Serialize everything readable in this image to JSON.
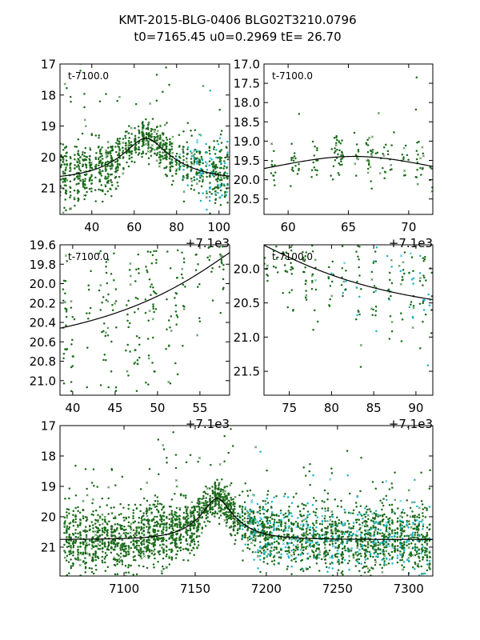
{
  "title": {
    "line1": "KMT-2015-BLG-0406 BLG02T3210.0796",
    "line2": "t0=7165.45 u0=0.2969 tE=  26.70"
  },
  "colors": {
    "green": "#1a6b1a",
    "cyan": "#19b5c4",
    "model": "#000000"
  },
  "chart_data": [
    {
      "type": "scatter",
      "name": "panel-1",
      "annotation": "t-7100.0",
      "xlim": [
        25,
        105
      ],
      "ylim": [
        21.85,
        17.0
      ],
      "xticks": [
        40,
        60,
        80,
        100
      ],
      "yticks": [
        17,
        18,
        19,
        20,
        21
      ],
      "offset_label": "+7.1e3",
      "series": [
        {
          "name": "KMT data",
          "band": "green"
        },
        {
          "name": "KMT data (alt site)",
          "band": "cyan"
        },
        {
          "name": "model"
        }
      ]
    },
    {
      "type": "scatter",
      "name": "panel-2",
      "annotation": "t-7100.0",
      "xlim": [
        58,
        72
      ],
      "ylim": [
        20.9,
        17.0
      ],
      "xticks": [
        60,
        65,
        70
      ],
      "yticks": [
        17.0,
        17.5,
        18.0,
        18.5,
        19.0,
        19.5,
        20.0,
        20.5
      ],
      "offset_label": "+7.1e3",
      "series": [
        {
          "name": "KMT data",
          "band": "green"
        },
        {
          "name": "model"
        }
      ]
    },
    {
      "type": "scatter",
      "name": "panel-3",
      "annotation": "t-7100.0",
      "xlim": [
        38.5,
        58.5
      ],
      "ylim": [
        21.15,
        19.6
      ],
      "xticks": [
        40,
        45,
        50,
        55
      ],
      "yticks": [
        19.6,
        19.8,
        20.0,
        20.2,
        20.4,
        20.6,
        20.8,
        21.0
      ],
      "offset_label": "+7.1e3",
      "series": [
        {
          "name": "KMT data",
          "band": "green"
        },
        {
          "name": "model"
        }
      ]
    },
    {
      "type": "scatter",
      "name": "panel-4",
      "annotation": "t-7100.0",
      "xlim": [
        72,
        92
      ],
      "ylim": [
        21.85,
        19.65
      ],
      "xticks": [
        75,
        80,
        85,
        90
      ],
      "yticks": [
        20.0,
        20.5,
        21.0,
        21.5
      ],
      "offset_label": "+7.1e3",
      "series": [
        {
          "name": "KMT data",
          "band": "green"
        },
        {
          "name": "KMT data (alt site)",
          "band": "cyan"
        },
        {
          "name": "model"
        }
      ]
    },
    {
      "type": "scatter",
      "name": "panel-5",
      "annotation": "",
      "xlim": [
        7055,
        7317
      ],
      "ylim": [
        21.95,
        17.0
      ],
      "xticks": [
        7100,
        7150,
        7200,
        7250,
        7300
      ],
      "yticks": [
        17,
        18,
        19,
        20,
        21
      ],
      "offset_label": "",
      "series": [
        {
          "name": "KMT data",
          "band": "green"
        },
        {
          "name": "KMT data (alt site)",
          "band": "cyan"
        },
        {
          "name": "model"
        }
      ]
    }
  ]
}
